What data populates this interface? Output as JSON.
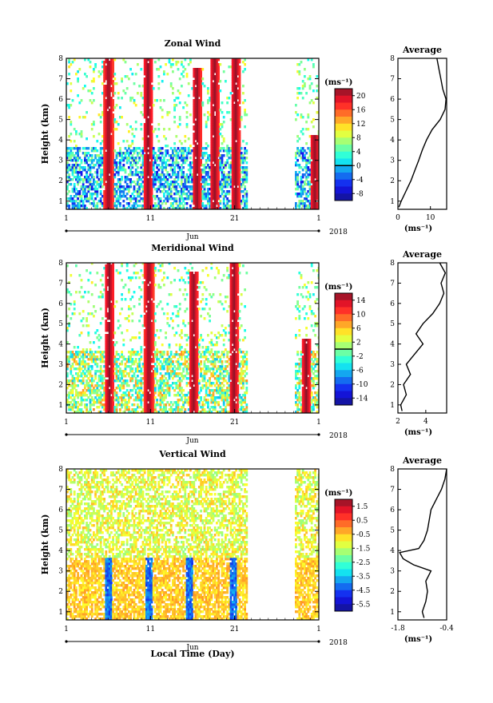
{
  "figure": {
    "xaxis_label": "Local Time (Day)",
    "year_label": "2018",
    "month_label": "Jun",
    "x_ticks": [
      "1",
      "11",
      "21",
      "1"
    ],
    "y_ticks": [
      "1",
      "2",
      "3",
      "4",
      "5",
      "6",
      "7",
      "8"
    ],
    "ylabel": "Height (km)",
    "cbar_unit": "(ms⁻¹)",
    "avg_title": "Average",
    "avg_xlabel": "(ms⁻¹)"
  },
  "chart_data": [
    {
      "type": "heatmap",
      "title": "Zonal Wind",
      "ylabel": "Height (km)",
      "ylim": [
        0.6,
        8
      ],
      "xlim": [
        1,
        31
      ],
      "x_ticks": [
        1,
        11,
        21,
        31
      ],
      "colorbar": {
        "ticks": [
          "20",
          "16",
          "12",
          "8",
          "4",
          "0",
          "-4",
          "-8"
        ],
        "range": [
          -10,
          22
        ],
        "zero_line": 0
      },
      "bursts": [
        {
          "day": 5.9,
          "top": 8.0
        },
        {
          "day": 10.6,
          "top": 8.0
        },
        {
          "day": 16.4,
          "top": 7.5
        },
        {
          "day": 18.5,
          "top": 8.0
        },
        {
          "day": 21.0,
          "top": 8.0
        },
        {
          "day": 30.4,
          "top": 4.2
        }
      ],
      "data_gap_days": [
        22.5,
        28.0
      ]
    },
    {
      "type": "line",
      "title": "Average",
      "xlabel": "(ms⁻¹)",
      "xlim": [
        0,
        15
      ],
      "ylim": [
        0.6,
        8
      ],
      "x_ticks": [
        "0",
        "10"
      ],
      "profile": {
        "height": [
          0.7,
          1,
          1.5,
          2,
          2.5,
          3,
          3.5,
          4,
          4.5,
          5,
          5.5,
          6,
          6.5,
          7,
          7.5,
          8
        ],
        "value": [
          0.3,
          1.0,
          2.5,
          4.0,
          5.2,
          6.4,
          7.5,
          8.8,
          10.5,
          13.0,
          14.5,
          14.8,
          13.8,
          13.2,
          12.6,
          12.0
        ]
      }
    },
    {
      "type": "heatmap",
      "title": "Meridional Wind",
      "ylabel": "Height (km)",
      "ylim": [
        0.6,
        8
      ],
      "xlim": [
        1,
        31
      ],
      "x_ticks": [
        1,
        11,
        21,
        31
      ],
      "colorbar": {
        "ticks": [
          "14",
          "10",
          "6",
          "2",
          "-2",
          "-6",
          "-10",
          "-14"
        ],
        "range": [
          -16,
          16
        ],
        "zero_line": 0
      },
      "bursts": [
        {
          "day": 6.0,
          "top": 8.0
        },
        {
          "day": 10.7,
          "top": 8.0
        },
        {
          "day": 16.0,
          "top": 7.5
        },
        {
          "day": 20.8,
          "top": 8.0
        },
        {
          "day": 29.4,
          "top": 4.2
        }
      ],
      "data_gap_days": [
        22.5,
        28.0
      ]
    },
    {
      "type": "line",
      "title": "Average",
      "xlabel": "(ms⁻¹)",
      "xlim": [
        2,
        5.5
      ],
      "ylim": [
        0.6,
        8
      ],
      "x_ticks": [
        "2",
        "4"
      ],
      "profile": {
        "height": [
          0.7,
          1,
          1.5,
          2,
          2.5,
          3,
          3.5,
          4,
          4.5,
          5,
          5.5,
          6,
          6.5,
          7,
          7.5,
          8
        ],
        "value": [
          2.3,
          2.2,
          2.6,
          2.4,
          2.9,
          2.6,
          3.2,
          3.8,
          3.3,
          3.8,
          4.5,
          5.0,
          5.3,
          5.1,
          5.4,
          5.0
        ]
      }
    },
    {
      "type": "heatmap",
      "title": "Vertical Wind",
      "ylabel": "Height (km)",
      "ylim": [
        0.6,
        8
      ],
      "xlim": [
        1,
        31
      ],
      "x_ticks": [
        1,
        11,
        21,
        31
      ],
      "colorbar": {
        "ticks": [
          "1.5",
          "0.5",
          "-0.5",
          "-1.5",
          "-2.5",
          "-3.5",
          "-4.5",
          "-5.5"
        ],
        "range": [
          -6,
          2
        ],
        "zero_line": null
      },
      "bursts": [
        {
          "day": 6.0,
          "top": 3.6
        },
        {
          "day": 10.8,
          "top": 3.6
        },
        {
          "day": 15.6,
          "top": 3.6
        },
        {
          "day": 20.8,
          "top": 3.6
        }
      ],
      "data_gap_days": [
        22.5,
        28.0
      ]
    },
    {
      "type": "line",
      "title": "Average",
      "xlabel": "(ms⁻¹)",
      "xlim": [
        -1.8,
        -0.4
      ],
      "ylim": [
        0.6,
        8
      ],
      "x_ticks": [
        "-1.8",
        "-0.4"
      ],
      "profile": {
        "height": [
          0.7,
          1,
          1.5,
          2,
          2.5,
          3,
          3.3,
          3.6,
          3.9,
          4.1,
          4.5,
          5,
          5.5,
          6,
          6.5,
          7,
          7.5,
          8
        ],
        "value": [
          -1.05,
          -1.1,
          -1.0,
          -0.95,
          -1.0,
          -0.85,
          -1.35,
          -1.65,
          -1.75,
          -1.2,
          -1.05,
          -0.95,
          -0.9,
          -0.85,
          -0.7,
          -0.55,
          -0.45,
          -0.4
        ]
      }
    }
  ]
}
